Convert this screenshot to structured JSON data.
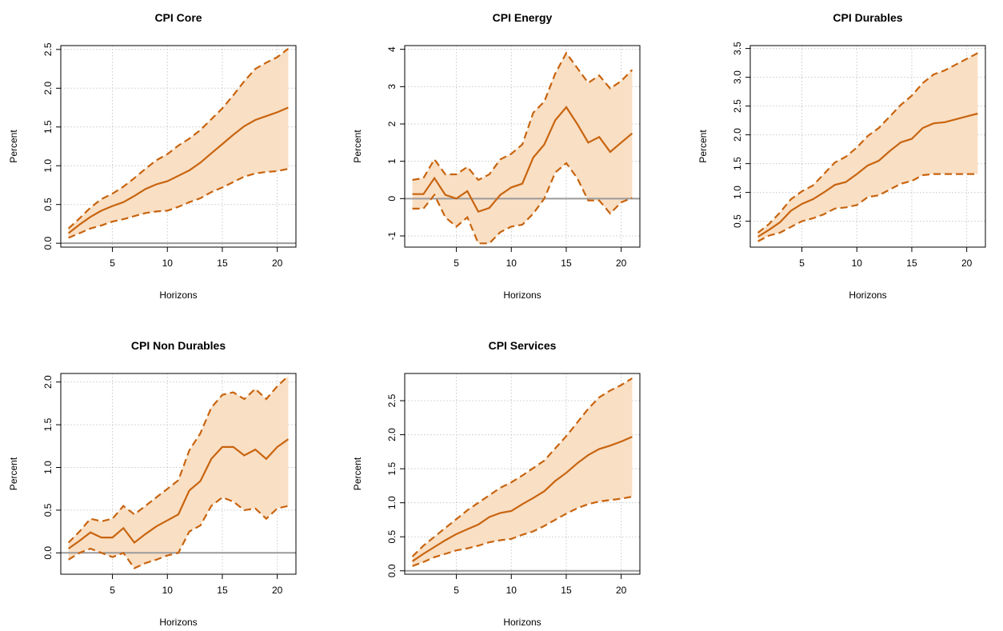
{
  "colors": {
    "band_fill": "#f9dfc4",
    "line": "#c8640f",
    "zero_line": "#9a9a9a",
    "grid": "#c8c8c8",
    "axis": "#000000"
  },
  "chart_data": [
    {
      "type": "line",
      "title": "CPI Core",
      "xlabel": "Horizons",
      "ylabel": "Percent",
      "xlim": [
        0.3,
        21.7
      ],
      "ylim": [
        -0.05,
        2.55
      ],
      "xticks": [
        5,
        10,
        15,
        20
      ],
      "yticks": [
        0.0,
        0.5,
        1.0,
        1.5,
        2.0,
        2.5
      ],
      "ytick_labels": [
        "0.0",
        "0.5",
        "1.0",
        "1.5",
        "2.0",
        "2.5"
      ],
      "grid": true,
      "zero_line": true,
      "x": [
        1,
        2,
        3,
        4,
        5,
        6,
        7,
        8,
        9,
        10,
        11,
        12,
        13,
        14,
        15,
        16,
        17,
        18,
        19,
        20,
        21
      ],
      "series": [
        {
          "name": "Upper",
          "style": "dashed",
          "values": [
            0.19,
            0.32,
            0.46,
            0.57,
            0.64,
            0.73,
            0.84,
            0.96,
            1.07,
            1.15,
            1.26,
            1.35,
            1.46,
            1.6,
            1.74,
            1.91,
            2.09,
            2.25,
            2.33,
            2.4,
            2.51
          ]
        },
        {
          "name": "Median",
          "style": "solid",
          "values": [
            0.13,
            0.24,
            0.34,
            0.42,
            0.48,
            0.53,
            0.61,
            0.7,
            0.76,
            0.8,
            0.87,
            0.94,
            1.04,
            1.16,
            1.28,
            1.4,
            1.51,
            1.59,
            1.64,
            1.69,
            1.75
          ]
        },
        {
          "name": "Lower",
          "style": "dashed",
          "values": [
            0.07,
            0.13,
            0.19,
            0.23,
            0.28,
            0.31,
            0.35,
            0.39,
            0.41,
            0.42,
            0.47,
            0.53,
            0.58,
            0.66,
            0.72,
            0.79,
            0.86,
            0.9,
            0.92,
            0.93,
            0.96
          ]
        }
      ]
    },
    {
      "type": "line",
      "title": "CPI Energy",
      "xlabel": "Horizons",
      "ylabel": "Percent",
      "xlim": [
        0.3,
        21.7
      ],
      "ylim": [
        -1.3,
        4.1
      ],
      "xticks": [
        5,
        10,
        15,
        20
      ],
      "yticks": [
        -1,
        0,
        1,
        2,
        3,
        4
      ],
      "ytick_labels": [
        "-1",
        "0",
        "1",
        "2",
        "3",
        "4"
      ],
      "grid": true,
      "zero_line": true,
      "x": [
        1,
        2,
        3,
        4,
        5,
        6,
        7,
        8,
        9,
        10,
        11,
        12,
        13,
        14,
        15,
        16,
        17,
        18,
        19,
        20,
        21
      ],
      "series": [
        {
          "name": "Upper",
          "style": "dashed",
          "values": [
            0.5,
            0.55,
            1.05,
            0.65,
            0.65,
            0.85,
            0.5,
            0.65,
            1.05,
            1.2,
            1.45,
            2.3,
            2.6,
            3.35,
            3.9,
            3.5,
            3.1,
            3.3,
            2.95,
            3.15,
            3.45
          ]
        },
        {
          "name": "Median",
          "style": "solid",
          "values": [
            0.12,
            0.12,
            0.55,
            0.1,
            0.0,
            0.2,
            -0.35,
            -0.25,
            0.1,
            0.3,
            0.4,
            1.1,
            1.45,
            2.1,
            2.45,
            2.0,
            1.5,
            1.65,
            1.25,
            1.5,
            1.75
          ]
        },
        {
          "name": "Lower",
          "style": "dashed",
          "values": [
            -0.27,
            -0.27,
            0.1,
            -0.5,
            -0.75,
            -0.5,
            -1.2,
            -1.2,
            -0.9,
            -0.75,
            -0.7,
            -0.4,
            0.0,
            0.7,
            0.95,
            0.55,
            -0.05,
            -0.05,
            -0.4,
            -0.1,
            0.02
          ]
        }
      ]
    },
    {
      "type": "line",
      "title": "CPI Durables",
      "xlabel": "Horizons",
      "ylabel": "Percent",
      "xlim": [
        0.3,
        21.7
      ],
      "ylim": [
        0.05,
        3.55
      ],
      "xticks": [
        5,
        10,
        15,
        20
      ],
      "yticks": [
        0.5,
        1.0,
        1.5,
        2.0,
        2.5,
        3.0,
        3.5
      ],
      "ytick_labels": [
        "0.5",
        "1.0",
        "1.5",
        "2.0",
        "2.5",
        "3.0",
        "3.5"
      ],
      "grid": true,
      "zero_line": false,
      "x": [
        1,
        2,
        3,
        4,
        5,
        6,
        7,
        8,
        9,
        10,
        11,
        12,
        13,
        14,
        15,
        16,
        17,
        18,
        19,
        20,
        21
      ],
      "series": [
        {
          "name": "Upper",
          "style": "dashed",
          "values": [
            0.3,
            0.45,
            0.65,
            0.88,
            1.02,
            1.12,
            1.32,
            1.52,
            1.62,
            1.78,
            1.98,
            2.12,
            2.32,
            2.52,
            2.68,
            2.9,
            3.05,
            3.12,
            3.22,
            3.32,
            3.42
          ]
        },
        {
          "name": "Median",
          "style": "solid",
          "values": [
            0.23,
            0.35,
            0.48,
            0.68,
            0.8,
            0.88,
            1.0,
            1.13,
            1.18,
            1.32,
            1.47,
            1.55,
            1.72,
            1.87,
            1.93,
            2.12,
            2.2,
            2.22,
            2.27,
            2.32,
            2.37
          ]
        },
        {
          "name": "Lower",
          "style": "dashed",
          "values": [
            0.15,
            0.25,
            0.3,
            0.4,
            0.5,
            0.55,
            0.62,
            0.72,
            0.74,
            0.78,
            0.92,
            0.95,
            1.05,
            1.15,
            1.2,
            1.3,
            1.32,
            1.32,
            1.32,
            1.32,
            1.32
          ]
        }
      ]
    },
    {
      "type": "line",
      "title": "CPI Non Durables",
      "xlabel": "Horizons",
      "ylabel": "Percent",
      "xlim": [
        0.3,
        21.7
      ],
      "ylim": [
        -0.25,
        2.1
      ],
      "xticks": [
        5,
        10,
        15,
        20
      ],
      "yticks": [
        0.0,
        0.5,
        1.0,
        1.5,
        2.0
      ],
      "ytick_labels": [
        "0.0",
        "0.5",
        "1.0",
        "1.5",
        "2.0"
      ],
      "grid": true,
      "zero_line": true,
      "x": [
        1,
        2,
        3,
        4,
        5,
        6,
        7,
        8,
        9,
        10,
        11,
        12,
        13,
        14,
        15,
        16,
        17,
        18,
        19,
        20,
        21
      ],
      "series": [
        {
          "name": "Upper",
          "style": "dashed",
          "values": [
            0.12,
            0.25,
            0.4,
            0.37,
            0.4,
            0.55,
            0.45,
            0.55,
            0.65,
            0.75,
            0.85,
            1.2,
            1.4,
            1.7,
            1.85,
            1.88,
            1.8,
            1.92,
            1.8,
            1.95,
            2.07
          ]
        },
        {
          "name": "Median",
          "style": "solid",
          "values": [
            0.05,
            0.14,
            0.24,
            0.18,
            0.18,
            0.29,
            0.12,
            0.22,
            0.31,
            0.38,
            0.45,
            0.73,
            0.84,
            1.1,
            1.24,
            1.24,
            1.14,
            1.21,
            1.1,
            1.24,
            1.33
          ]
        },
        {
          "name": "Lower",
          "style": "dashed",
          "values": [
            -0.08,
            0.0,
            0.05,
            0.0,
            -0.05,
            0.0,
            -0.18,
            -0.12,
            -0.08,
            -0.03,
            0.0,
            0.25,
            0.32,
            0.55,
            0.65,
            0.6,
            0.5,
            0.52,
            0.4,
            0.52,
            0.55
          ]
        }
      ]
    },
    {
      "type": "line",
      "title": "CPI Services",
      "xlabel": "Horizons",
      "ylabel": "Percent",
      "xlim": [
        0.3,
        21.7
      ],
      "ylim": [
        -0.05,
        2.9
      ],
      "xticks": [
        5,
        10,
        15,
        20
      ],
      "yticks": [
        0.0,
        0.5,
        1.0,
        1.5,
        2.0,
        2.5
      ],
      "ytick_labels": [
        "0.0",
        "0.5",
        "1.0",
        "1.5",
        "2.0",
        "2.5"
      ],
      "grid": true,
      "zero_line": true,
      "x": [
        1,
        2,
        3,
        4,
        5,
        6,
        7,
        8,
        9,
        10,
        11,
        12,
        13,
        14,
        15,
        16,
        17,
        18,
        19,
        20,
        21
      ],
      "series": [
        {
          "name": "Upper",
          "style": "dashed",
          "values": [
            0.21,
            0.37,
            0.5,
            0.63,
            0.76,
            0.89,
            1.0,
            1.11,
            1.22,
            1.3,
            1.4,
            1.51,
            1.62,
            1.8,
            1.98,
            2.18,
            2.38,
            2.55,
            2.65,
            2.73,
            2.83
          ]
        },
        {
          "name": "Median",
          "style": "solid",
          "values": [
            0.14,
            0.25,
            0.35,
            0.45,
            0.54,
            0.61,
            0.68,
            0.79,
            0.85,
            0.88,
            0.98,
            1.07,
            1.17,
            1.32,
            1.44,
            1.58,
            1.7,
            1.79,
            1.84,
            1.9,
            1.97
          ]
        },
        {
          "name": "Lower",
          "style": "dashed",
          "values": [
            0.07,
            0.13,
            0.2,
            0.25,
            0.3,
            0.33,
            0.37,
            0.42,
            0.45,
            0.47,
            0.53,
            0.58,
            0.66,
            0.75,
            0.84,
            0.92,
            0.98,
            1.02,
            1.04,
            1.06,
            1.09
          ]
        }
      ]
    }
  ]
}
